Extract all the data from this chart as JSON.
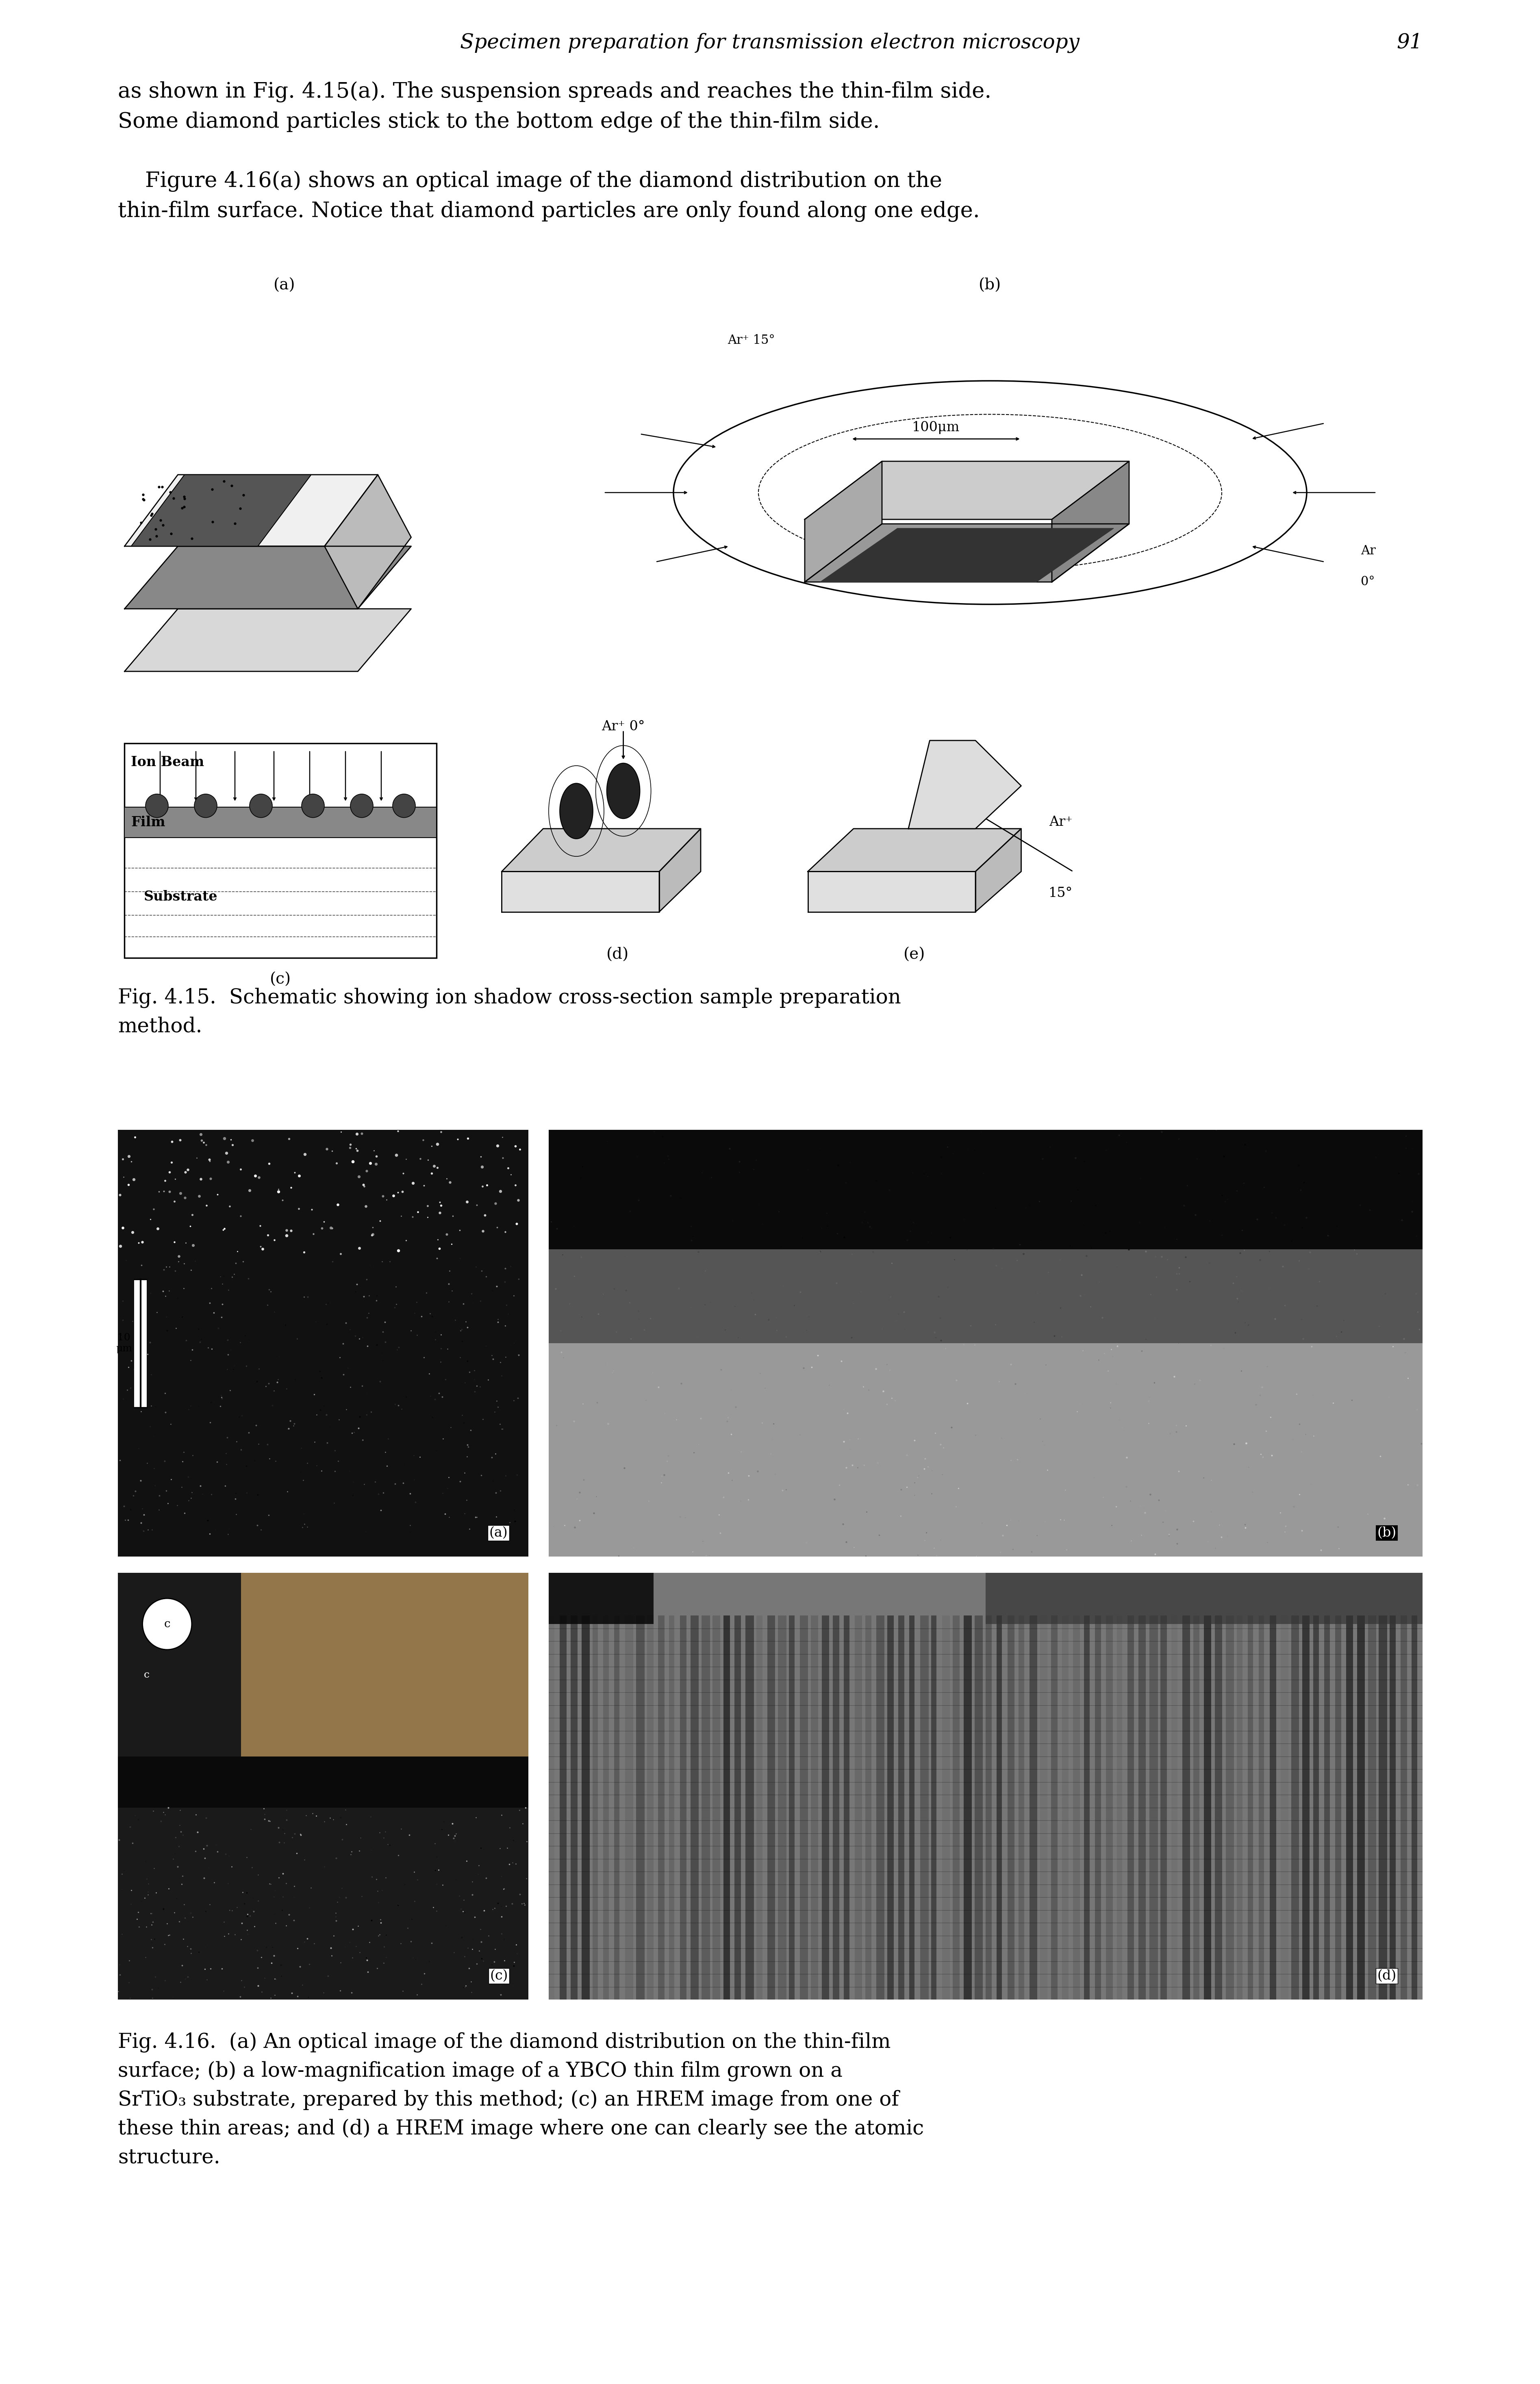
{
  "page_title_italic": "Specimen preparation for transmission electron microscopy",
  "page_number": "91",
  "paragraph1": "as shown in Fig. 4.15(a). The suspension spreads and reaches the thin-film side.\nSome diamond particles stick to the bottom edge of the thin-film side.",
  "paragraph2_indent": "    Figure 4.16(a) shows an optical image of the diamond distribution on the\nthin-film surface. Notice that diamond particles are only found along one edge.",
  "fig_caption_415": "Fig. 4.15.  Schematic showing ion shadow cross-section sample preparation\nmethod.",
  "fig_caption_416_line1": "Fig. 4.16.  (a) An optical image of the diamond distribution on the thin-film",
  "fig_caption_416_line2": "surface; (b) a low-magnification image of a YBCO thin film grown on a",
  "fig_caption_416_line3": "SrTiO₃ substrate, prepared by this method; (c) an HREM image from one of",
  "fig_caption_416_line4": "these thin areas; and (d) a HREM image where one can clearly see the atomic",
  "fig_caption_416_line5": "structure.",
  "background_color": "#ffffff",
  "text_color": "#000000"
}
